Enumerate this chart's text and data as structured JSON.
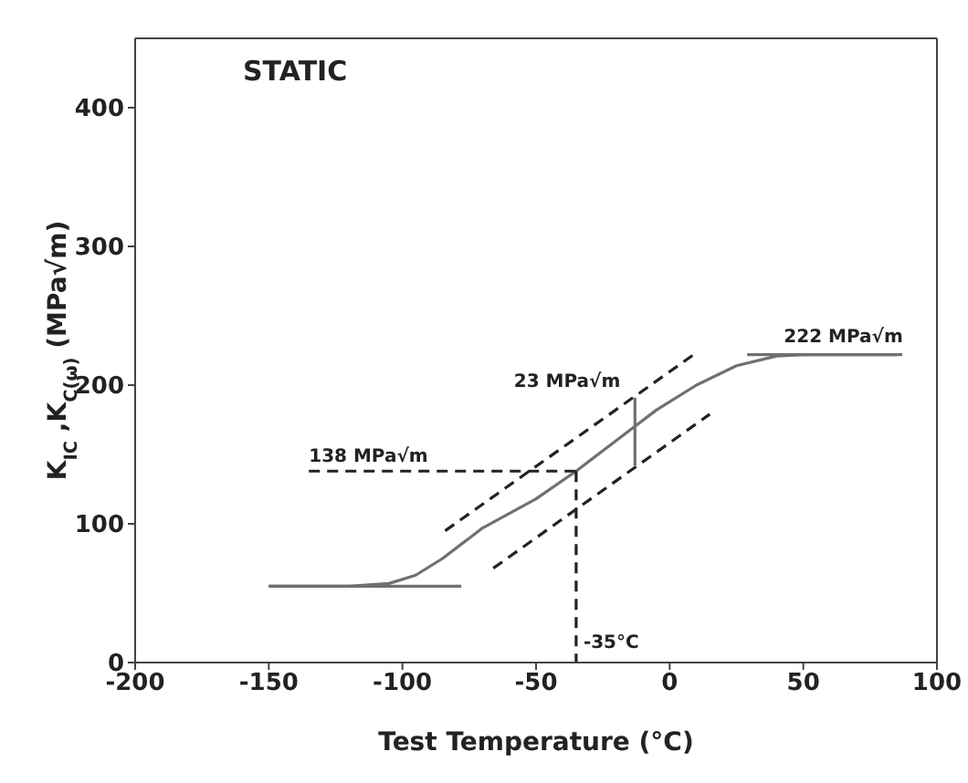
{
  "chart_data": {
    "type": "line",
    "xlabel": "Test Temperature (°C)",
    "ylabel": "K$_{IC}$ ,K$_{C(ω)}$ (MPa√m)",
    "xlim": [
      -200,
      100
    ],
    "xticks": [
      -200,
      -150,
      -100,
      -50,
      0,
      50,
      100
    ],
    "ylim": [
      0,
      450
    ],
    "yticks": [
      0,
      100,
      200,
      300,
      400
    ],
    "marker": "none",
    "series": [
      {
        "color": "#707070",
        "line_style": "solid",
        "x": [
          -150,
          -120,
          -105,
          -95,
          -85,
          -70,
          -50,
          -35,
          -20,
          -5,
          10,
          25,
          40,
          50,
          85
        ],
        "values": [
          55,
          55,
          57,
          63,
          75,
          97,
          118,
          138,
          160,
          182,
          200,
          214,
          221,
          222,
          222
        ]
      },
      {
        "color": "#707070",
        "line_style": "solid",
        "x": [
          -150,
          -78
        ],
        "values": [
          55,
          55
        ]
      },
      {
        "color": "#707070",
        "line_style": "solid",
        "x": [
          29,
          87
        ],
        "values": [
          222,
          222
        ]
      },
      {
        "color": "#222222",
        "line_style": "dashed",
        "x": [
          -84,
          9
        ],
        "values": [
          95,
          222
        ]
      },
      {
        "color": "#222222",
        "line_style": "dashed",
        "x": [
          -66,
          15
        ],
        "values": [
          68,
          179
        ]
      },
      {
        "color": "#222222",
        "line_style": "dashed",
        "x": [
          -135,
          -35
        ],
        "values": [
          138,
          138
        ]
      },
      {
        "color": "#222222",
        "line_style": "dashed",
        "x": [
          -35,
          -35
        ],
        "values": [
          138,
          0
        ]
      },
      {
        "color": "#707070",
        "line_style": "solid",
        "x": [
          -13,
          -13
        ],
        "values": [
          191,
          142
        ]
      }
    ],
    "annotations": [
      "STATIC",
      {
        "text": "222 MPa√m",
        "x": 65,
        "y": 222
      },
      {
        "text": "23 MPa√m",
        "x": -13,
        "y": 191
      },
      {
        "text": "138 MPa√m",
        "x": -135,
        "y": 138
      },
      {
        "text": "-35°C",
        "x": -35,
        "y": 0
      }
    ]
  }
}
